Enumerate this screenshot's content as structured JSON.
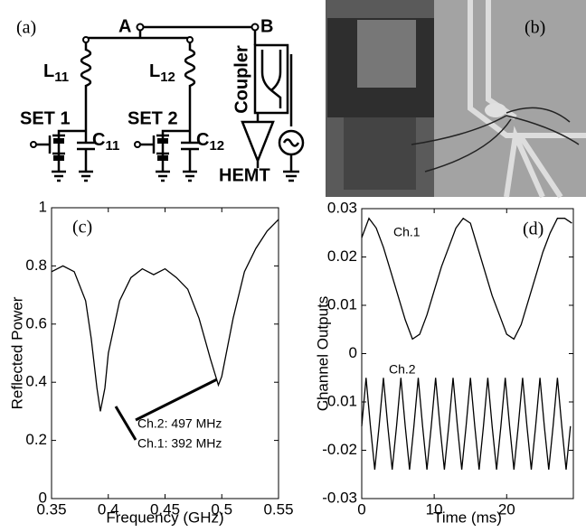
{
  "panel_a": {
    "label": "(a)",
    "node_a": "A",
    "node_b": "B",
    "inductor_1": {
      "letter": "L",
      "index": "11"
    },
    "inductor_2": {
      "letter": "L",
      "index": "12"
    },
    "capacitor_1": {
      "letter": "C",
      "index": "11"
    },
    "capacitor_2": {
      "letter": "C",
      "index": "12"
    },
    "set_1": "SET 1",
    "set_2": "SET 2",
    "coupler": "Coupler",
    "amplifier": "HEMT"
  },
  "panel_b": {
    "label": "(b)"
  },
  "chart_data": [
    {
      "type": "line",
      "panel_label": "(c)",
      "x_label": "Frequency (GHz)",
      "y_label": "Reflected Power",
      "annotations": [
        "Ch.2: 497 MHz",
        "Ch.1: 392 MHz"
      ],
      "x": [
        0.35,
        0.36,
        0.37,
        0.38,
        0.385,
        0.39,
        0.393,
        0.397,
        0.4,
        0.41,
        0.42,
        0.43,
        0.44,
        0.45,
        0.46,
        0.47,
        0.48,
        0.49,
        0.497,
        0.5,
        0.51,
        0.52,
        0.53,
        0.54,
        0.55
      ],
      "values": [
        0.78,
        0.8,
        0.78,
        0.68,
        0.55,
        0.38,
        0.3,
        0.38,
        0.5,
        0.68,
        0.76,
        0.79,
        0.77,
        0.79,
        0.76,
        0.72,
        0.62,
        0.48,
        0.39,
        0.42,
        0.62,
        0.78,
        0.86,
        0.92,
        0.96
      ],
      "color": "#000000",
      "xlim": [
        0.35,
        0.55
      ],
      "xticks": [
        0.35,
        0.4,
        0.45,
        0.5,
        0.55
      ],
      "ylim": [
        0,
        1
      ],
      "yticks": [
        0,
        0.2,
        0.4,
        0.6,
        0.8,
        1
      ]
    },
    {
      "type": "line",
      "panel_label": "(d)",
      "x_label": "Time (ms)",
      "y_label": "Channel Outputs",
      "series": [
        {
          "name": "Ch.1",
          "color": "#000000",
          "x": [
            0,
            1,
            2,
            3,
            4,
            5,
            6,
            7,
            8,
            9,
            10,
            11,
            12,
            13,
            14,
            15,
            16,
            17,
            18,
            19,
            20,
            21,
            22,
            23,
            24,
            25,
            26,
            27,
            28,
            29
          ],
          "values": [
            0.024,
            0.028,
            0.026,
            0.022,
            0.017,
            0.012,
            0.007,
            0.003,
            0.004,
            0.008,
            0.013,
            0.018,
            0.022,
            0.026,
            0.028,
            0.027,
            0.022,
            0.017,
            0.012,
            0.008,
            0.004,
            0.003,
            0.006,
            0.011,
            0.016,
            0.021,
            0.025,
            0.028,
            0.028,
            0.027
          ]
        },
        {
          "name": "Ch.2",
          "color": "#000000",
          "x": [
            0,
            0.6,
            1.2,
            1.8,
            2.4,
            3.0,
            3.6,
            4.2,
            4.8,
            5.4,
            6.0,
            6.6,
            7.2,
            7.8,
            8.4,
            9.0,
            9.6,
            10.2,
            10.8,
            11.4,
            12.0,
            12.6,
            13.2,
            13.8,
            14.4,
            15.0,
            15.6,
            16.2,
            16.8,
            17.4,
            18.0,
            18.6,
            19.2,
            19.8,
            20.4,
            21.0,
            21.6,
            22.2,
            22.8,
            23.4,
            24.0,
            24.6,
            25.2,
            25.8,
            26.4,
            27.0,
            27.6,
            28.2,
            28.8
          ],
          "values": [
            -0.015,
            -0.005,
            -0.015,
            -0.024,
            -0.015,
            -0.005,
            -0.015,
            -0.024,
            -0.015,
            -0.005,
            -0.015,
            -0.024,
            -0.015,
            -0.005,
            -0.015,
            -0.024,
            -0.015,
            -0.005,
            -0.015,
            -0.024,
            -0.015,
            -0.005,
            -0.015,
            -0.024,
            -0.015,
            -0.005,
            -0.015,
            -0.024,
            -0.015,
            -0.005,
            -0.015,
            -0.024,
            -0.015,
            -0.005,
            -0.015,
            -0.024,
            -0.015,
            -0.005,
            -0.015,
            -0.024,
            -0.015,
            -0.005,
            -0.015,
            -0.024,
            -0.015,
            -0.005,
            -0.015,
            -0.024,
            -0.015
          ]
        }
      ],
      "xlim": [
        0,
        29.2
      ],
      "xticks": [
        0,
        10,
        20
      ],
      "ylim": [
        -0.03,
        0.03
      ],
      "yticks": [
        -0.03,
        -0.02,
        -0.01,
        0,
        0.01,
        0.02,
        0.03
      ]
    }
  ]
}
